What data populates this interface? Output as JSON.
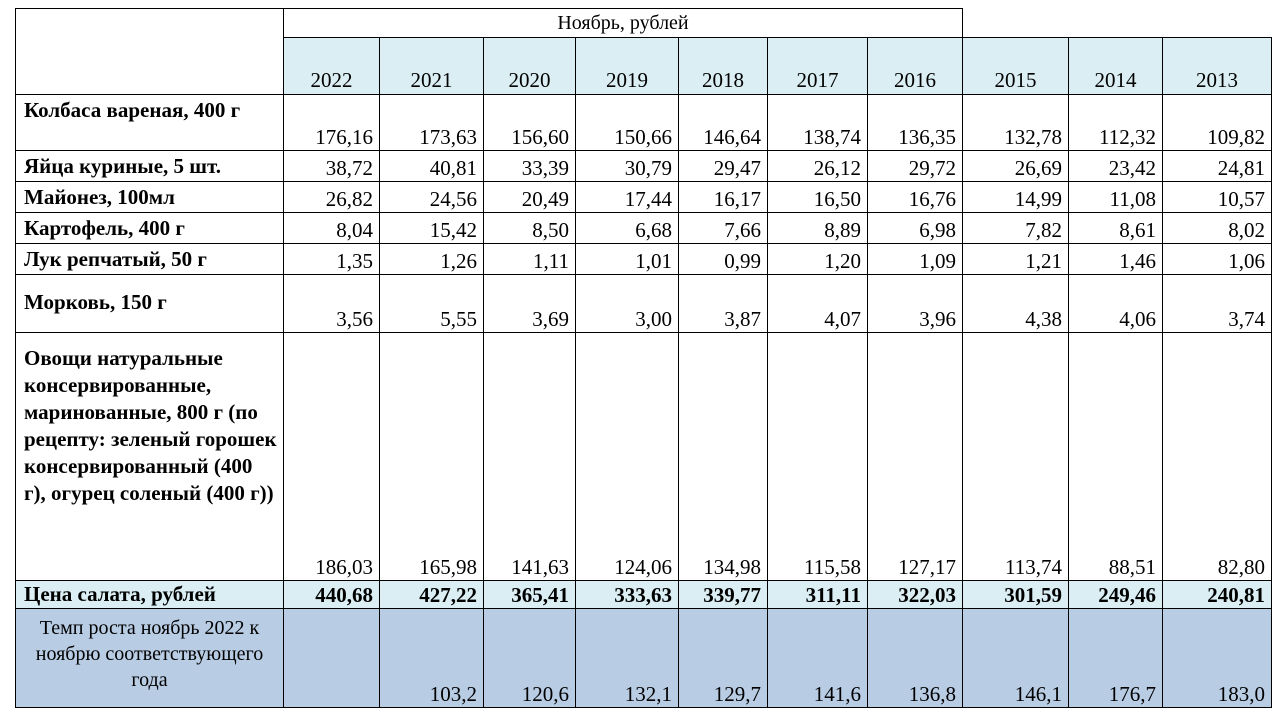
{
  "header": {
    "caption": "Ноябрь, рублей",
    "years": [
      "2022",
      "2021",
      "2020",
      "2019",
      "2018",
      "2017",
      "2016",
      "2015",
      "2014",
      "2013"
    ]
  },
  "rows": [
    {
      "label": "Колбаса вареная, 400 г",
      "values": [
        "176,16",
        "173,63",
        "156,60",
        "150,66",
        "146,64",
        "138,74",
        "136,35",
        "132,78",
        "112,32",
        "109,82"
      ]
    },
    {
      "label": "Яйца куриные, 5 шт.",
      "values": [
        "38,72",
        "40,81",
        "33,39",
        "30,79",
        "29,47",
        "26,12",
        "29,72",
        "26,69",
        "23,42",
        "24,81"
      ]
    },
    {
      "label": "Майонез, 100мл",
      "values": [
        "26,82",
        "24,56",
        "20,49",
        "17,44",
        "16,17",
        "16,50",
        "16,76",
        "14,99",
        "11,08",
        "10,57"
      ]
    },
    {
      "label": "Картофель, 400 г",
      "values": [
        "8,04",
        "15,42",
        "8,50",
        "6,68",
        "7,66",
        "8,89",
        "6,98",
        "7,82",
        "8,61",
        "8,02"
      ]
    },
    {
      "label": "Лук репчатый, 50 г",
      "values": [
        "1,35",
        "1,26",
        "1,11",
        "1,01",
        "0,99",
        "1,20",
        "1,09",
        "1,21",
        "1,46",
        "1,06"
      ]
    },
    {
      "label": "Морковь, 150 г",
      "values": [
        "3,56",
        "5,55",
        "3,69",
        "3,00",
        "3,87",
        "4,07",
        "3,96",
        "4,38",
        "4,06",
        "3,74"
      ]
    },
    {
      "label": "Овощи натуральные консервированные, маринованные, 800 г (по рецепту: зеленый горошек консервированный (400 г), огурец соленый (400 г))",
      "values": [
        "186,03",
        "165,98",
        "141,63",
        "124,06",
        "134,98",
        "115,58",
        "127,17",
        "113,74",
        "88,51",
        "82,80"
      ]
    }
  ],
  "total": {
    "label": "Цена салата, рублей",
    "values": [
      "440,68",
      "427,22",
      "365,41",
      "333,63",
      "339,77",
      "311,11",
      "322,03",
      "301,59",
      "249,46",
      "240,81"
    ]
  },
  "growth": {
    "label": "Темп роста ноябрь 2022 к ноябрю соответствующего года",
    "values": [
      "",
      "103,2",
      "120,6",
      "132,1",
      "129,7",
      "141,6",
      "136,8",
      "146,1",
      "176,7",
      "183,0"
    ]
  }
}
